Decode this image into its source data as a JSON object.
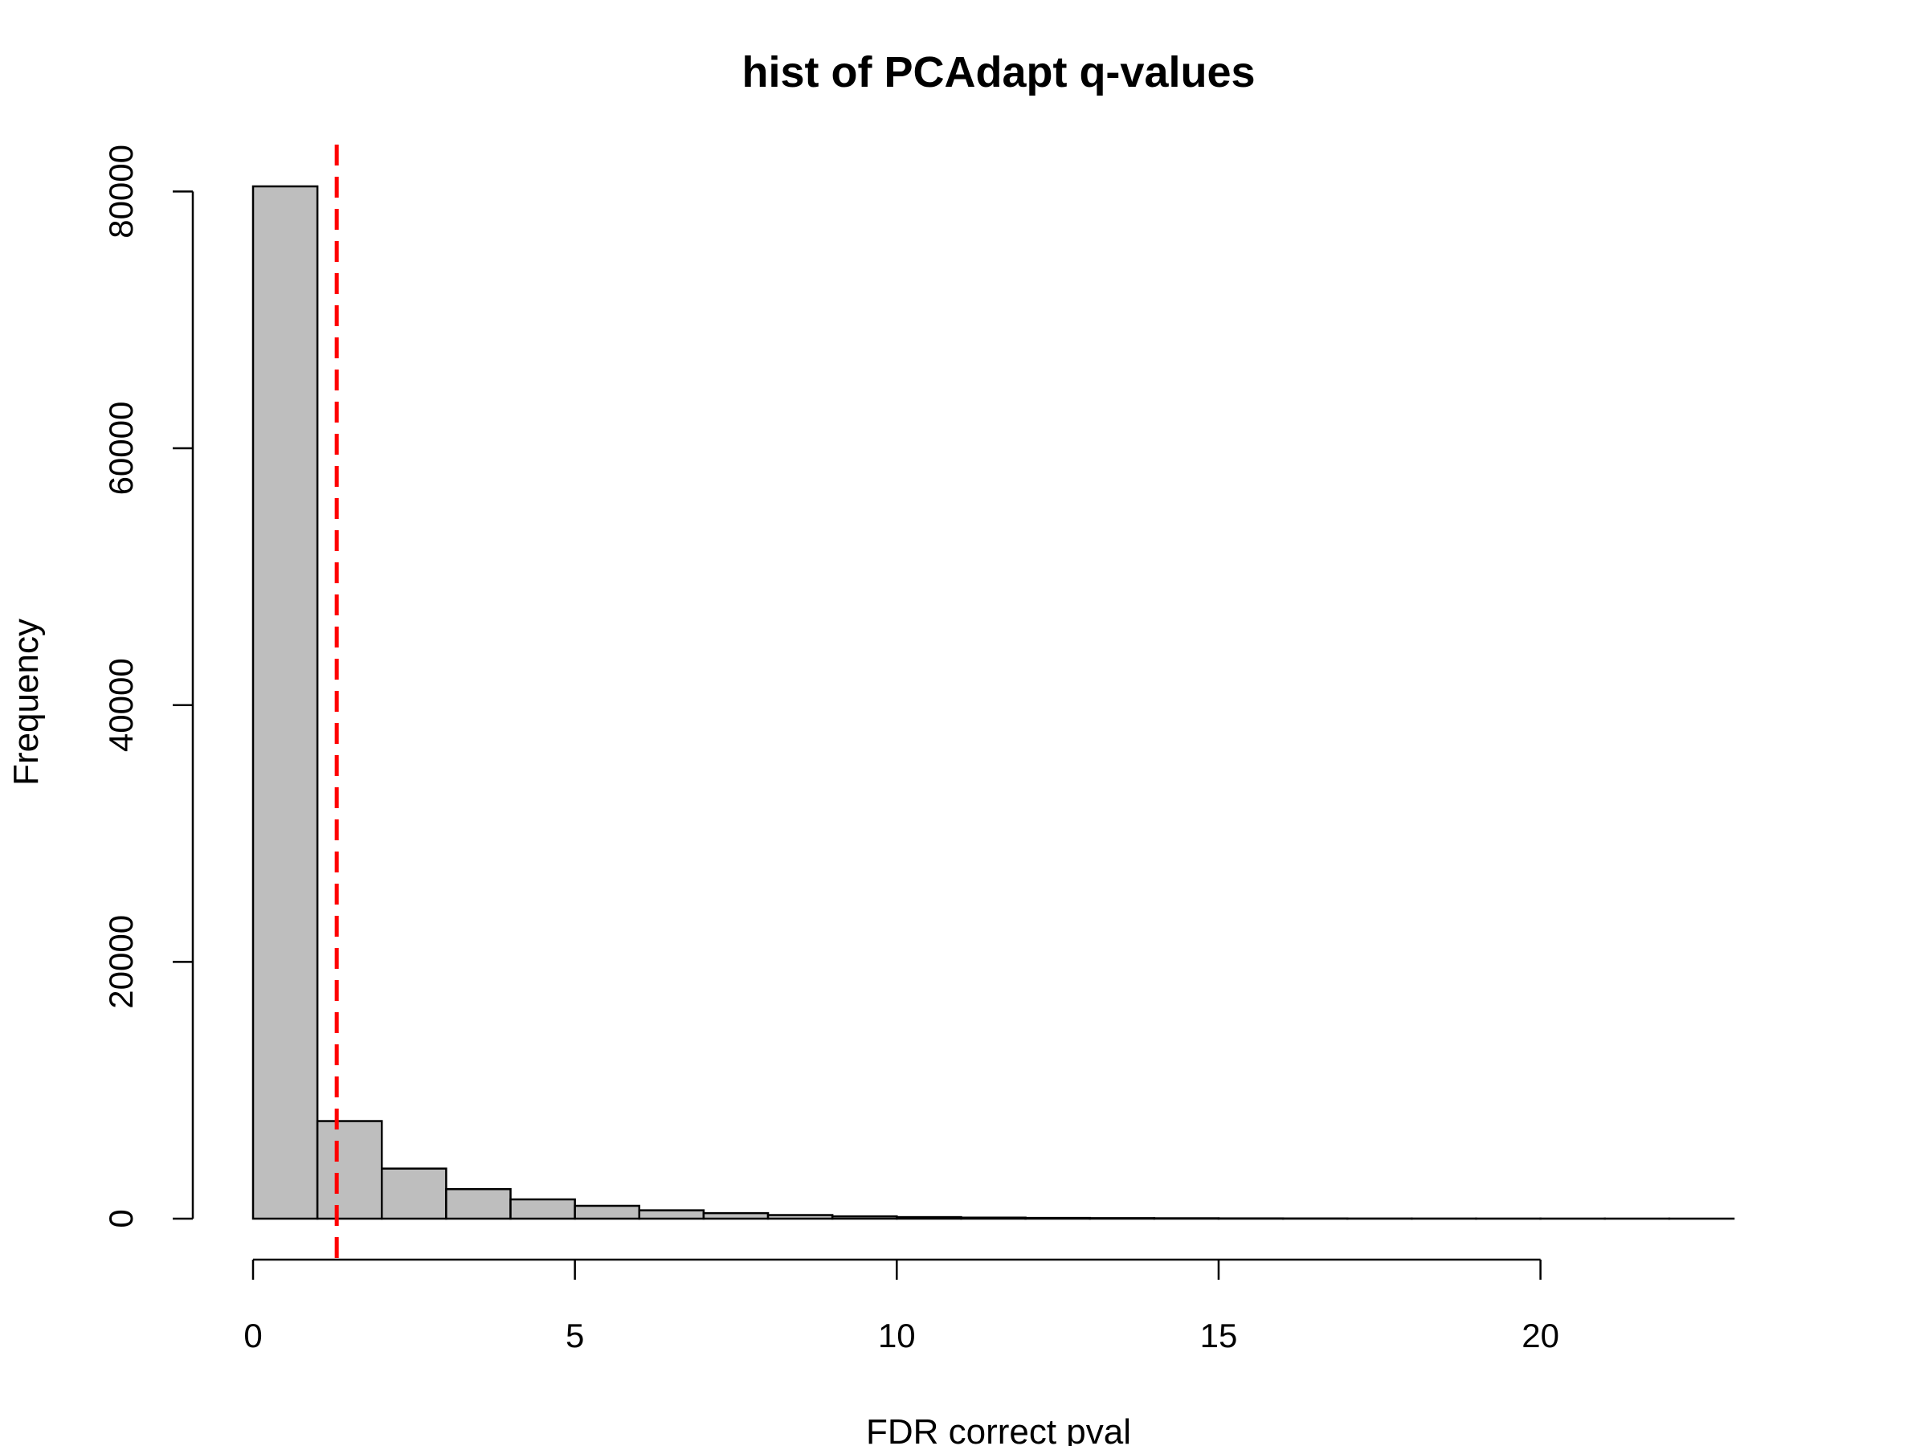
{
  "chart_data": {
    "type": "bar",
    "title": "hist of PCAdapt q-values",
    "xlabel": "FDR correct pval",
    "ylabel": "Frequency",
    "bin_width": 1,
    "bin_starts": [
      0,
      1,
      2,
      3,
      4,
      5,
      6,
      7,
      8,
      9,
      10,
      11,
      12,
      13,
      14,
      15,
      16,
      17,
      18,
      19,
      20,
      21,
      22
    ],
    "values": [
      80400,
      7600,
      3900,
      2300,
      1500,
      1000,
      650,
      430,
      280,
      180,
      120,
      80,
      55,
      40,
      30,
      20,
      15,
      10,
      8,
      6,
      5,
      4,
      3
    ],
    "xlim": [
      0,
      23
    ],
    "ylim": [
      0,
      80400
    ],
    "xticks": [
      0,
      5,
      10,
      15,
      20
    ],
    "yticks": [
      0,
      20000,
      40000,
      60000,
      80000
    ],
    "threshold_line": {
      "x": 1.3,
      "color": "#ff0000",
      "style": "dashed"
    },
    "bar_color": "#bebebe",
    "grid": false
  }
}
